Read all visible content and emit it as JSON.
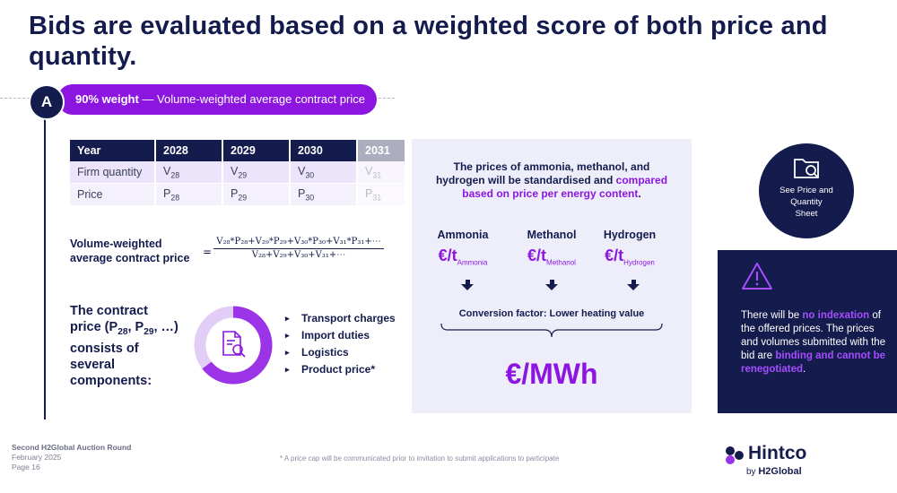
{
  "title": "Bids are evaluated based on a weighted score of both price and quantity.",
  "section": {
    "badge": "A",
    "weight_bold": "90% weight",
    "weight_rest": " — Volume-weighted average contract price"
  },
  "table": {
    "headers": [
      "Year",
      "2028",
      "2029",
      "2030",
      "2031"
    ],
    "rows": [
      {
        "label": "Firm quantity",
        "symbol": "V",
        "subs": [
          "28",
          "29",
          "30",
          "31"
        ]
      },
      {
        "label": "Price",
        "symbol": "P",
        "subs": [
          "28",
          "29",
          "30",
          "31"
        ]
      }
    ]
  },
  "vw_label_line1": "Volume-weighted",
  "vw_label_line2": "average contract price",
  "formula": {
    "eq": "=",
    "numerator": "V₂₈*P₂₈+V₂₉*P₂₉+V₃₀*P₃₀+V₃₁*P₃₁+⋯",
    "denominator": "V₂₈+V₂₉+V₃₀+V₃₁+⋯"
  },
  "components_text": {
    "l1": "The contract",
    "l2a": "price (P",
    "s1": "28",
    "l2b": ", P",
    "s2": "29",
    "l2c": ", …)",
    "l3": "consists of",
    "l4": "several",
    "l5": "components:"
  },
  "components": [
    "Transport charges",
    "Import duties",
    "Logistics",
    "Product price*"
  ],
  "standardise": {
    "line1": "The prices of ammonia, methanol, and",
    "line2a": "hydrogen will be standardised and ",
    "line2b": "compared",
    "line3a": "based on price per energy content",
    "line3b": ".",
    "fuels": [
      {
        "name": "Ammonia",
        "unit": "€/t",
        "sub": "Ammonia"
      },
      {
        "name": "Methanol",
        "unit": "€/t",
        "sub": "Methanol"
      },
      {
        "name": "Hydrogen",
        "unit": "€/t",
        "sub": "Hydrogen"
      }
    ],
    "conversion": "Conversion factor: Lower heating value",
    "result": "€/MWh"
  },
  "see_sheet": {
    "l1": "See Price and",
    "l2": "Quantity",
    "l3": "Sheet"
  },
  "indexation": {
    "a": "There will be ",
    "b": "no indexation",
    "c": " of the offered prices. The prices and volumes submitted with the bid are ",
    "d": "binding and cannot be renegotiated",
    "e": "."
  },
  "footer": {
    "line1": "Second H2Global Auction Round",
    "line2": "February 2025",
    "line3": "Page 16",
    "footnote": "* A price cap will be communicated prior to invitation to submit applications to participate"
  },
  "logo": {
    "name": "Hintco",
    "by": "by",
    "brand": "H2Global"
  },
  "colors": {
    "navy": "#141b4d",
    "purple": "#8c16e0",
    "lavender": "#eeeefa"
  }
}
